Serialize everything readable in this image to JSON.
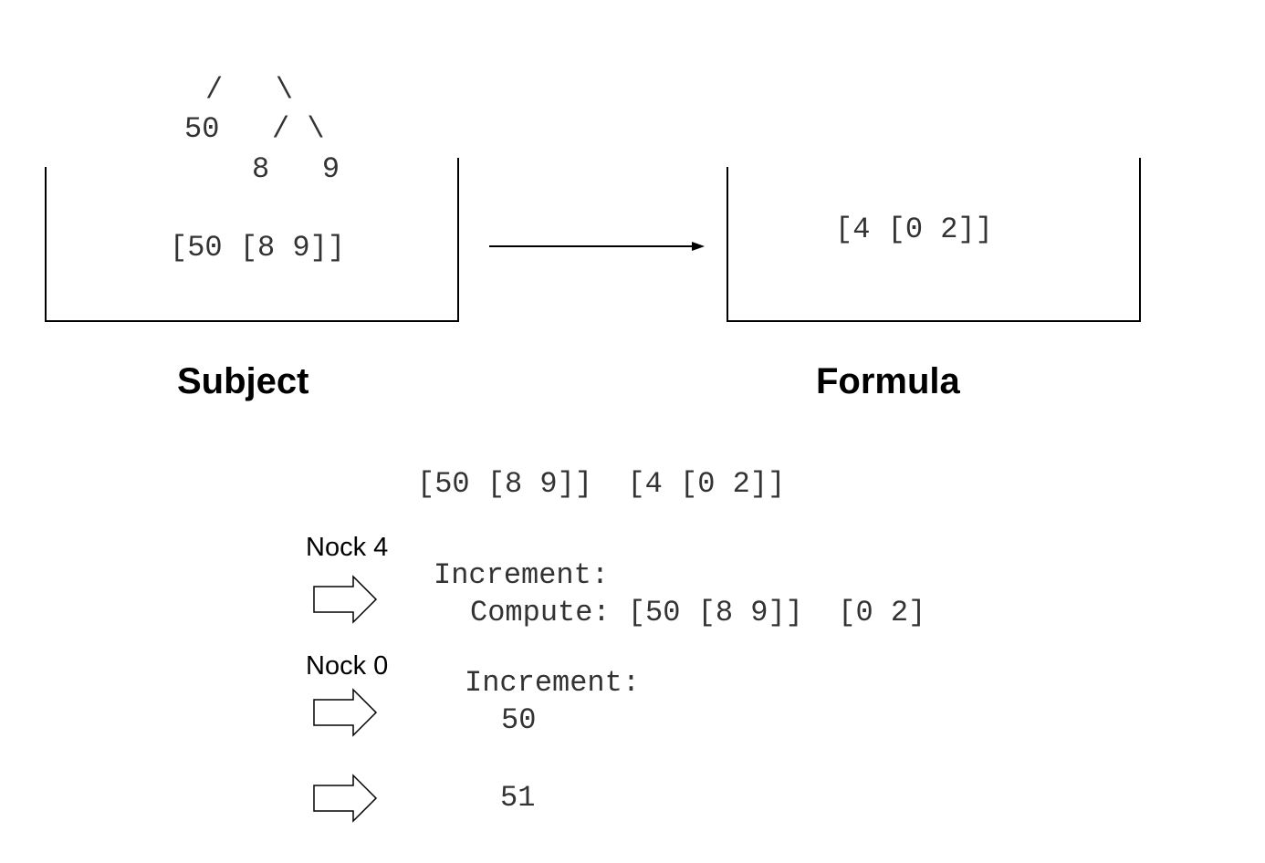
{
  "tree": {
    "line1": "/   \\",
    "line2": "50   / \\",
    "line3": "8   9"
  },
  "subject": {
    "expression": "[50 [8 9]]",
    "label": "Subject"
  },
  "formula": {
    "expression": "[4 [0 2]]",
    "label": "Formula"
  },
  "steps": {
    "initial": "[50 [8 9]]  [4 [0 2]]",
    "step1": {
      "label": "Nock 4",
      "line1": "Increment:",
      "line2": "Compute: [50 [8 9]]  [0 2]"
    },
    "step2": {
      "label": "Nock 0",
      "line1": "Increment:",
      "line2": "50"
    },
    "step3": {
      "result": "51"
    }
  }
}
